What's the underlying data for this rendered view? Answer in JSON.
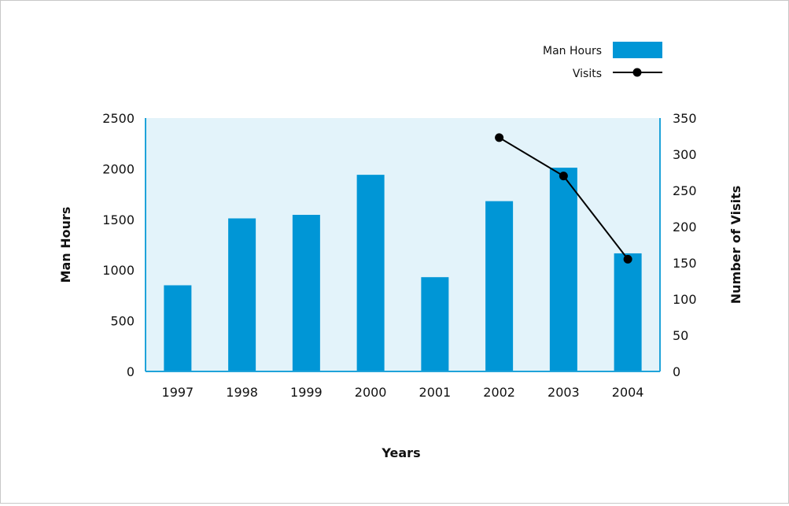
{
  "chart_data": {
    "type": "bar",
    "categories": [
      "1997",
      "1998",
      "1999",
      "2000",
      "2001",
      "2002",
      "2003",
      "2004"
    ],
    "series": [
      {
        "name": "Man Hours",
        "type": "bar",
        "axis": "left",
        "values": [
          850,
          1510,
          1545,
          1940,
          930,
          1680,
          2010,
          1165
        ]
      },
      {
        "name": "Visits",
        "type": "line",
        "axis": "right",
        "values": [
          null,
          null,
          null,
          null,
          null,
          323,
          270,
          155
        ]
      }
    ],
    "xlabel": "Years",
    "ylabel": "Man Hours",
    "y2label": "Number of Visits",
    "ylim": [
      0,
      2500
    ],
    "y2lim": [
      0,
      350
    ],
    "yticks": [
      "0",
      "500",
      "1000",
      "1500",
      "2000",
      "2500"
    ],
    "y2ticks": [
      "0",
      "50",
      "100",
      "150",
      "200",
      "250",
      "300",
      "350"
    ],
    "legend": "top-right",
    "grid": false,
    "colors": {
      "bar": "#0096d6",
      "plot_bg": "#e3f3fa",
      "line": "#000000",
      "axis": "#1fa3d9"
    }
  }
}
